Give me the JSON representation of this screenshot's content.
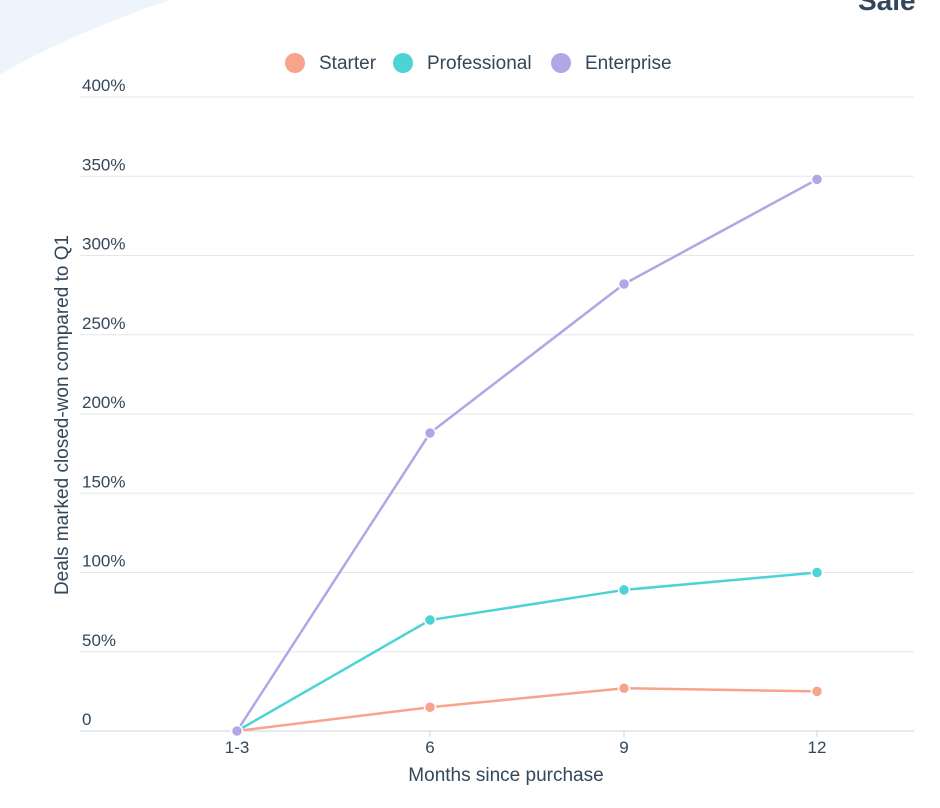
{
  "page": {
    "corner_title": "Sale"
  },
  "chart_data": {
    "type": "line",
    "categories": [
      "1-3",
      "6",
      "9",
      "12"
    ],
    "series": [
      {
        "name": "Starter",
        "color": "#f8a38b",
        "values": [
          0,
          15,
          27,
          25
        ]
      },
      {
        "name": "Professional",
        "color": "#4bd3d6",
        "values": [
          0,
          70,
          89,
          100
        ]
      },
      {
        "name": "Enterprise",
        "color": "#b3a5e6",
        "values": [
          0,
          188,
          282,
          348
        ]
      }
    ],
    "yticks": [
      "0",
      "50%",
      "100%",
      "150%",
      "200%",
      "250%",
      "300%",
      "350%",
      "400%"
    ],
    "ytick_values": [
      0,
      50,
      100,
      150,
      200,
      250,
      300,
      350,
      400
    ],
    "ylim": [
      0,
      400
    ],
    "xlabel": "Months since purchase",
    "ylabel": "Deals marked closed-won compared to Q1",
    "legend_position": "top",
    "grid": true
  }
}
